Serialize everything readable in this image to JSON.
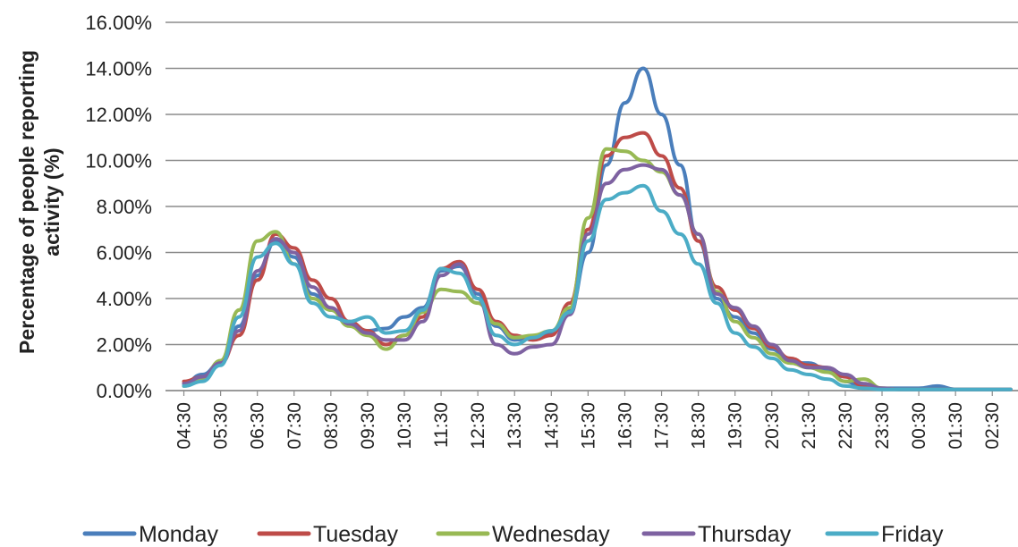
{
  "chart_data": {
    "type": "line",
    "title": "",
    "xlabel": "",
    "ylabel": "Percentage of people reporting activity  (%)",
    "ylabel_lines": [
      "Percentage of people reporting",
      "activity  (%)"
    ],
    "ylim": [
      0,
      16
    ],
    "yticks": [
      "0.00%",
      "2.00%",
      "4.00%",
      "6.00%",
      "8.00%",
      "10.00%",
      "12.00%",
      "14.00%",
      "16.00%"
    ],
    "grid": "horizontal",
    "legend_position": "bottom",
    "x_range_hours": [
      4,
      27.2
    ],
    "xticks": [
      "04:30",
      "05:30",
      "06:30",
      "07:30",
      "08:30",
      "09:30",
      "10:30",
      "11:30",
      "12:30",
      "13:30",
      "14:30",
      "15:30",
      "16:30",
      "17:30",
      "18:30",
      "19:30",
      "20:30",
      "21:30",
      "22:30",
      "23:30",
      "00:30",
      "01:30",
      "02:30"
    ],
    "x_hours": [
      4.5,
      5.0,
      5.5,
      6.0,
      6.5,
      7.0,
      7.5,
      8.0,
      8.5,
      9.0,
      9.5,
      10.0,
      10.5,
      11.0,
      11.5,
      12.0,
      12.5,
      13.0,
      13.5,
      14.0,
      14.5,
      15.0,
      15.5,
      16.0,
      16.5,
      17.0,
      17.5,
      18.0,
      18.5,
      19.0,
      19.5,
      20.0,
      20.5,
      21.0,
      21.5,
      22.0,
      22.5,
      23.0,
      23.5,
      24.0,
      24.5,
      25.0,
      25.5,
      26.0,
      26.5,
      27.0
    ],
    "series": [
      {
        "name": "Monday",
        "color": "#4a7ebb",
        "values": [
          0.3,
          0.7,
          1.2,
          2.8,
          5.0,
          6.5,
          5.8,
          4.2,
          3.5,
          2.9,
          2.6,
          2.7,
          3.2,
          3.6,
          5.2,
          5.4,
          4.2,
          2.8,
          2.2,
          2.3,
          2.5,
          3.5,
          6.0,
          9.8,
          12.5,
          14.0,
          12.0,
          9.8,
          6.5,
          4.0,
          3.2,
          2.5,
          1.8,
          1.2,
          1.2,
          0.9,
          0.4,
          0.1,
          0.1,
          0.1,
          0.1,
          0.2,
          0.05,
          0.05,
          0.05,
          0.05
        ]
      },
      {
        "name": "Tuesday",
        "color": "#be4b48",
        "values": [
          0.4,
          0.6,
          1.2,
          2.4,
          4.8,
          6.8,
          6.2,
          4.8,
          4.0,
          3.0,
          2.6,
          2.0,
          2.4,
          3.2,
          5.3,
          5.6,
          4.4,
          3.0,
          2.4,
          2.2,
          2.4,
          3.8,
          7.0,
          10.2,
          11.0,
          11.2,
          10.2,
          8.8,
          6.5,
          4.5,
          3.5,
          2.7,
          1.9,
          1.4,
          1.1,
          1.0,
          0.6,
          0.2,
          0.1,
          0.05,
          0.05,
          0.05,
          0.05,
          0.05,
          0.05,
          0.05
        ]
      },
      {
        "name": "Wednesday",
        "color": "#98b954",
        "values": [
          0.2,
          0.5,
          1.3,
          3.5,
          6.5,
          6.9,
          5.5,
          4.0,
          3.5,
          2.8,
          2.4,
          1.8,
          2.4,
          3.4,
          4.4,
          4.3,
          3.8,
          2.9,
          2.3,
          2.4,
          2.6,
          3.6,
          7.5,
          10.5,
          10.4,
          10.0,
          9.5,
          8.5,
          6.8,
          4.3,
          3.0,
          2.3,
          1.6,
          1.2,
          1.0,
          0.8,
          0.4,
          0.5,
          0.1,
          0.05,
          0.05,
          0.05,
          0.05,
          0.05,
          0.05,
          0.05
        ]
      },
      {
        "name": "Thursday",
        "color": "#7e62a1",
        "values": [
          0.3,
          0.6,
          1.2,
          2.6,
          5.2,
          6.6,
          6.0,
          4.5,
          3.6,
          2.9,
          2.5,
          2.2,
          2.2,
          3.0,
          5.0,
          5.5,
          4.0,
          2.0,
          1.6,
          1.9,
          2.0,
          3.3,
          6.8,
          9.0,
          9.6,
          9.8,
          9.6,
          8.5,
          6.8,
          4.2,
          3.6,
          2.8,
          2.0,
          1.3,
          1.0,
          1.0,
          0.7,
          0.3,
          0.1,
          0.05,
          0.05,
          0.05,
          0.05,
          0.05,
          0.05,
          0.05
        ]
      },
      {
        "name": "Friday",
        "color": "#4bacc6",
        "values": [
          0.2,
          0.4,
          1.1,
          3.2,
          5.8,
          6.4,
          5.5,
          3.8,
          3.2,
          3.0,
          3.2,
          2.5,
          2.6,
          3.5,
          5.3,
          5.1,
          4.0,
          2.4,
          2.0,
          2.3,
          2.6,
          3.4,
          6.5,
          8.3,
          8.6,
          8.9,
          7.8,
          6.8,
          5.5,
          3.8,
          2.5,
          1.9,
          1.4,
          0.9,
          0.7,
          0.5,
          0.2,
          0.1,
          0.05,
          0.05,
          0.05,
          0.05,
          0.05,
          0.05,
          0.05,
          0.05
        ]
      }
    ]
  }
}
